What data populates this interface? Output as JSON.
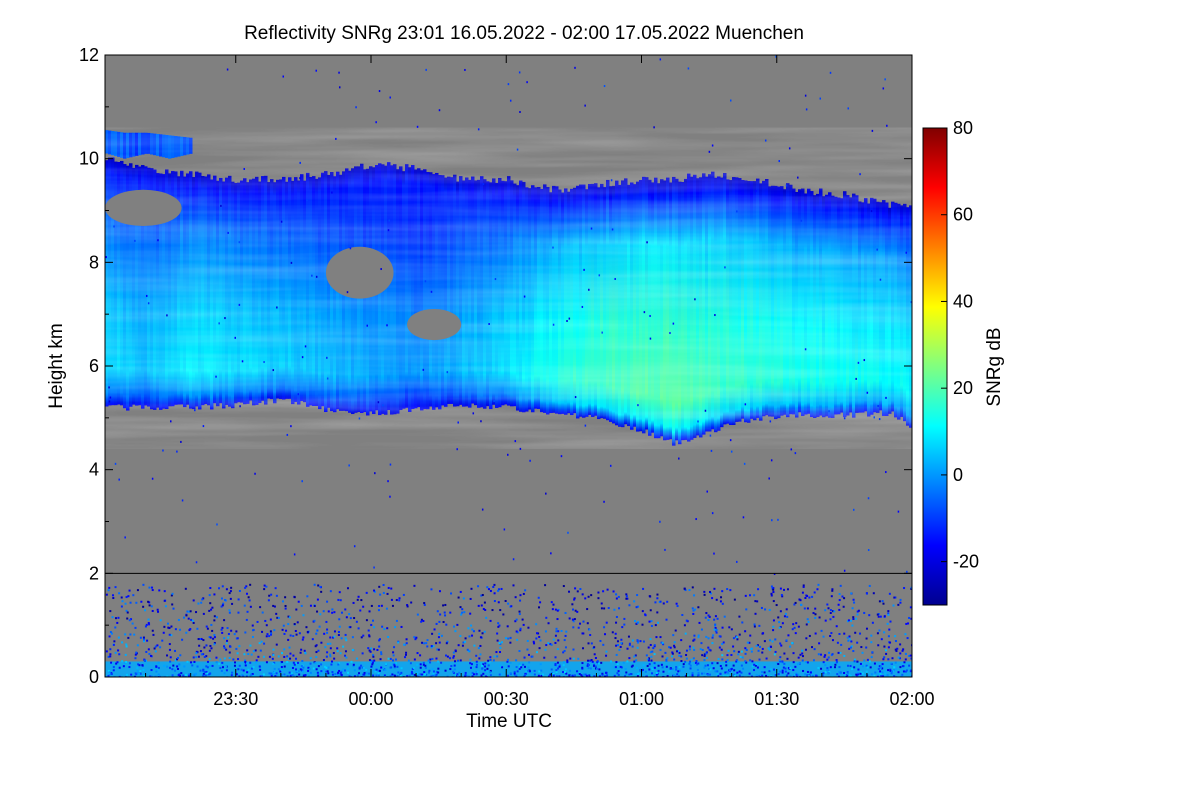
{
  "chart_data": {
    "type": "heatmap",
    "title": "Reflectivity SNRg   23:01 16.05.2022 - 02:00 17.05.2022 Muenchen",
    "xlabel": "Time UTC",
    "ylabel": "Height km",
    "xlim_minutes_utc": [
      1381,
      1560
    ],
    "x_ticks": [
      {
        "label": "23:30",
        "value": 1410
      },
      {
        "label": "00:00",
        "value": 1440
      },
      {
        "label": "00:30",
        "value": 1470
      },
      {
        "label": "01:00",
        "value": 1500
      },
      {
        "label": "01:30",
        "value": 1530
      },
      {
        "label": "02:00",
        "value": 1560
      }
    ],
    "ylim": [
      0,
      12
    ],
    "y_ticks": [
      {
        "label": "0",
        "value": 0
      },
      {
        "label": "2",
        "value": 2
      },
      {
        "label": "4",
        "value": 4
      },
      {
        "label": "6",
        "value": 6
      },
      {
        "label": "8",
        "value": 8
      },
      {
        "label": "10",
        "value": 10
      },
      {
        "label": "12",
        "value": 12
      }
    ],
    "reference_line_height_km": 2,
    "background_color": "#808080",
    "colorbar": {
      "label": "SNRg dB",
      "range": [
        -30,
        80
      ],
      "ticks": [
        {
          "label": "-20",
          "value": -20
        },
        {
          "label": "0",
          "value": 0
        },
        {
          "label": "20",
          "value": 20
        },
        {
          "label": "40",
          "value": 40
        },
        {
          "label": "60",
          "value": 60
        },
        {
          "label": "80",
          "value": 80
        }
      ],
      "colormap": [
        "#00008f",
        "#0000ff",
        "#0080ff",
        "#00ffff",
        "#80ff80",
        "#ffff00",
        "#ff8000",
        "#ff0000",
        "#800000"
      ]
    },
    "cloud_layer": {
      "time_minutes": [
        1381,
        1390,
        1400,
        1410,
        1420,
        1430,
        1440,
        1450,
        1460,
        1470,
        1480,
        1490,
        1500,
        1507,
        1515,
        1525,
        1535,
        1545,
        1555,
        1560
      ],
      "base_km": [
        5.2,
        5.2,
        5.2,
        5.25,
        5.35,
        5.15,
        5.1,
        5.15,
        5.25,
        5.2,
        5.1,
        5.0,
        4.75,
        4.5,
        4.75,
        5.0,
        5.05,
        5.05,
        5.1,
        4.8
      ],
      "top_km": [
        10.0,
        9.8,
        9.7,
        9.6,
        9.6,
        9.7,
        9.9,
        9.8,
        9.6,
        9.6,
        9.4,
        9.5,
        9.6,
        9.6,
        9.7,
        9.6,
        9.4,
        9.3,
        9.1,
        9.1
      ],
      "peak_snr_db": [
        8,
        5,
        10,
        8,
        6,
        4,
        2,
        0,
        4,
        8,
        14,
        18,
        20,
        21,
        18,
        16,
        14,
        13,
        12,
        10
      ]
    },
    "upper_cloud": {
      "time_minutes": [
        1381,
        1385,
        1390,
        1395,
        1400
      ],
      "base_km": [
        10.1,
        10.0,
        10.1,
        10.0,
        10.1
      ],
      "top_km": [
        10.55,
        10.5,
        10.5,
        10.45,
        10.4
      ],
      "snr_db": -8
    },
    "clear_regions": [
      {
        "t": [
          1381,
          1398
        ],
        "h": [
          8.7,
          9.4
        ]
      },
      {
        "t": [
          1430,
          1445
        ],
        "h": [
          7.3,
          8.3
        ]
      },
      {
        "t": [
          1448,
          1460
        ],
        "h": [
          6.5,
          7.1
        ]
      }
    ],
    "surface_clutter": {
      "max_height_km": 1.8,
      "dense_height_km": 0.3,
      "snr_db": 2
    }
  }
}
